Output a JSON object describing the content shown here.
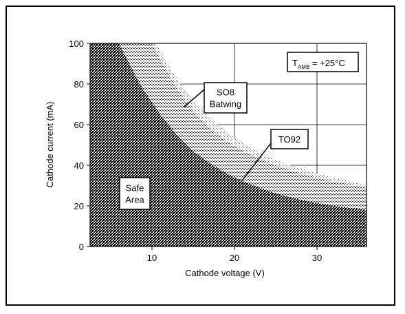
{
  "chart_data": {
    "type": "area",
    "xlabel": "Cathode voltage (V)",
    "ylabel": "Cathode current  (mA)",
    "xlim": [
      2.5,
      36
    ],
    "ylim": [
      0,
      100
    ],
    "x_ticks": [
      10,
      20,
      30
    ],
    "y_ticks": [
      0,
      20,
      40,
      60,
      80,
      100
    ],
    "grid": true,
    "condition_label": {
      "main": "T",
      "sub": "AMB",
      "rest": " = +25°C"
    },
    "series": [
      {
        "name": "Safe Area",
        "label_lines": [
          "Safe",
          "Area"
        ],
        "x": [
          6.0,
          7,
          8,
          9,
          10,
          11,
          12,
          13,
          14,
          15,
          16,
          17,
          18,
          19,
          20,
          22,
          24,
          26,
          28,
          30,
          32,
          34,
          36
        ],
        "y": [
          100,
          92,
          84,
          77,
          71,
          65,
          60,
          55,
          51,
          47,
          44,
          41,
          38.5,
          36,
          34,
          30.5,
          27.5,
          25,
          23,
          21.5,
          20,
          19,
          18
        ]
      },
      {
        "name": "TO92",
        "label_lines": [
          "TO92"
        ],
        "x": [
          10.0,
          11,
          12,
          13,
          14,
          15,
          16,
          17,
          18,
          19,
          20,
          22,
          24,
          26,
          28,
          30,
          32,
          34,
          36
        ],
        "y": [
          100,
          92,
          85,
          78,
          72,
          67,
          62.5,
          58.5,
          55,
          52,
          49.5,
          45,
          41.5,
          38.5,
          36,
          34,
          32,
          30.5,
          29
        ]
      },
      {
        "name": "SO8 Batwing",
        "label_lines": [
          "SO8",
          "Batwing"
        ],
        "x": [
          10.5,
          11,
          12,
          13,
          14,
          15,
          16,
          17,
          18,
          19,
          20,
          22,
          24,
          26,
          28,
          30,
          32,
          34,
          36
        ],
        "y": [
          100,
          96,
          89,
          83,
          77,
          72,
          67.5,
          63.5,
          60,
          56.5,
          53.5,
          48.5,
          44.5,
          41,
          38.5,
          36,
          34,
          32,
          30
        ]
      }
    ]
  }
}
